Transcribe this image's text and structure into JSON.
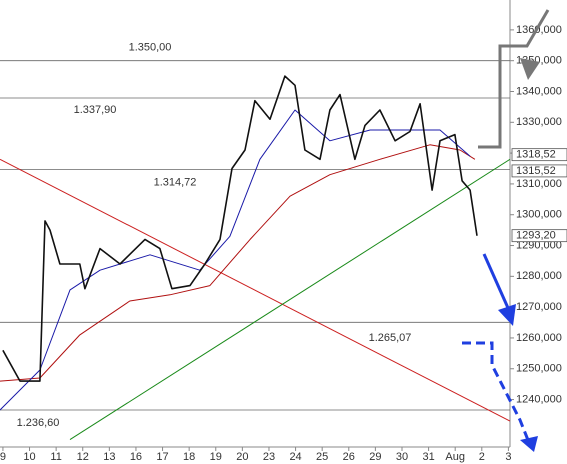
{
  "chart_data": {
    "type": "line",
    "xlim": [
      -0.11,
      19.06
    ],
    "ylim": [
      1224.6,
      1369.7
    ],
    "xticks": [
      {
        "value": 0,
        "label": "9"
      },
      {
        "value": 1,
        "label": "10"
      },
      {
        "value": 2,
        "label": "11"
      },
      {
        "value": 3,
        "label": "12"
      },
      {
        "value": 4,
        "label": "13"
      },
      {
        "value": 5,
        "label": "16"
      },
      {
        "value": 6,
        "label": "17"
      },
      {
        "value": 7,
        "label": "18"
      },
      {
        "value": 8,
        "label": "19"
      },
      {
        "value": 9,
        "label": "20"
      },
      {
        "value": 10,
        "label": "23"
      },
      {
        "value": 11,
        "label": "24"
      },
      {
        "value": 12,
        "label": "25"
      },
      {
        "value": 13,
        "label": "26"
      },
      {
        "value": 14,
        "label": "29"
      },
      {
        "value": 15,
        "label": "30"
      },
      {
        "value": 16,
        "label": "31"
      },
      {
        "value": 17,
        "label": "Aug"
      },
      {
        "value": 18,
        "label": "2"
      },
      {
        "value": 19,
        "label": "3"
      }
    ],
    "yticks": [
      {
        "value": 1240,
        "label": "1240,000"
      },
      {
        "value": 1250,
        "label": "1250,000"
      },
      {
        "value": 1260,
        "label": "1260,000"
      },
      {
        "value": 1270,
        "label": "1270,000"
      },
      {
        "value": 1280,
        "label": "1280,000"
      },
      {
        "value": 1290,
        "label": "1290,000"
      },
      {
        "value": 1300,
        "label": "1300,000"
      },
      {
        "value": 1310,
        "label": "1310,000"
      },
      {
        "value": 1320,
        "label": "1320,000"
      },
      {
        "value": 1330,
        "label": "1330,000"
      },
      {
        "value": 1340,
        "label": "1340,000"
      },
      {
        "value": 1350,
        "label": "1350,000"
      },
      {
        "value": 1360,
        "label": "1360,000"
      }
    ],
    "series": [
      {
        "color": "#111111",
        "x": [
          0,
          0.64,
          1.39,
          1.58,
          1.77,
          2.14,
          2.89,
          3.08,
          3.65,
          4.4,
          5.34,
          5.9,
          6.35,
          7.03,
          7.59,
          8.16,
          8.61,
          9.1,
          9.47,
          10.04,
          10.6,
          10.98,
          11.35,
          11.92,
          12.29,
          12.67,
          13.23,
          13.61,
          14.17,
          14.74,
          15.3,
          15.68,
          16.13,
          16.43,
          16.99,
          17.26,
          17.56,
          17.82
        ],
        "values": [
          1256,
          1246,
          1246,
          1298,
          1295,
          1284,
          1284,
          1276,
          1289,
          1284,
          1292,
          1289,
          1276,
          1277,
          1284,
          1292,
          1315,
          1321,
          1337,
          1331,
          1345,
          1342,
          1321,
          1318,
          1334,
          1339,
          1318,
          1329,
          1334,
          1324,
          1327,
          1336,
          1308,
          1324,
          1326,
          1311,
          1308,
          1293.2
        ]
      },
      {
        "color": "#1a1aa8",
        "x": [
          -0.11,
          1.39,
          2.52,
          3.65,
          5.53,
          7.4,
          8.53,
          9.66,
          10.98,
          12.29,
          13.8,
          15.3,
          16.43,
          17.56
        ],
        "values": [
          1236.6,
          1249.6,
          1275.6,
          1282,
          1287,
          1282,
          1293,
          1318,
          1334,
          1324,
          1327.5,
          1327.5,
          1327.5,
          1319
        ]
      },
      {
        "color": "#b01010",
        "x": [
          -0.11,
          1.39,
          2.89,
          4.77,
          6.28,
          7.78,
          9.29,
          10.79,
          12.29,
          14.17,
          16.05,
          17.18,
          17.74
        ],
        "values": [
          1246,
          1247,
          1261,
          1272,
          1274,
          1277,
          1292,
          1306,
          1313,
          1318,
          1322.7,
          1321,
          1318
        ]
      }
    ],
    "levels": [
      1350,
      1337.9,
      1314.72,
      1265.07,
      1236.6
    ],
    "level_labels": [
      "1.350,00",
      "1.337,90",
      "1.314,72",
      "1.265,07",
      "1.236,60"
    ],
    "trendlines": [
      {
        "color": "#cc2020",
        "x": [
          -0.11,
          19.06
        ],
        "values": [
          1318,
          1233
        ]
      },
      {
        "color": "#1a8a1a",
        "x": [
          2.52,
          19.06
        ],
        "values": [
          1227,
          1318
        ]
      }
    ],
    "price_tags": [
      1318.52,
      1315.52,
      1293.2
    ],
    "price_tag_labels": [
      "1318,52",
      "1315,52",
      "1293,20"
    ]
  }
}
